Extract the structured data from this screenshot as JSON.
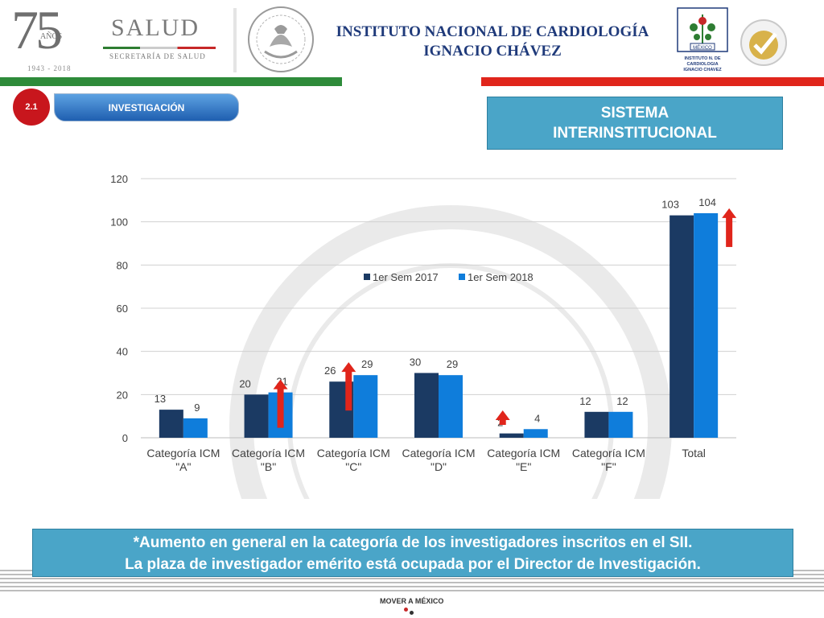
{
  "header": {
    "anniversary_number": "75",
    "anniversary_word": "AÑOS",
    "anniversary_years": "1943 - 2018",
    "salud_title": "SALUD",
    "salud_subtitle": "SECRETARÍA DE SALUD",
    "institute_line1": "INSTITUTO NACIONAL DE CARDIOLOGÍA",
    "institute_line2": "IGNACIO CHÁVEZ",
    "inc_logo_text": "MÉXICO",
    "inc_logo_caption_1": "INSTITUTO N. DE",
    "inc_logo_caption_2": "CARDIOLOGIA",
    "inc_logo_caption_3": "IGNACIO CHAVEZ",
    "colors": {
      "green": "#2e8b3a",
      "red": "#e0251b",
      "navy": "#1f3a7a"
    }
  },
  "section": {
    "number": "2.1",
    "name": "INVESTIGACIÓN",
    "system_line1": "SISTEMA",
    "system_line2": "INTERINSTITUCIONAL"
  },
  "chart_data": {
    "type": "bar",
    "categories": [
      [
        "Categoría ICM",
        "\"A\""
      ],
      [
        "Categoría ICM",
        "\"B\""
      ],
      [
        "Categoría ICM",
        "\"C\""
      ],
      [
        "Categoría ICM",
        "\"D\""
      ],
      [
        "Categoría ICM",
        "\"E\""
      ],
      [
        "Categoría ICM",
        "\"F\""
      ],
      [
        "Total"
      ]
    ],
    "series": [
      {
        "name": "1er Sem 2017",
        "values": [
          13,
          20,
          26,
          30,
          2,
          12,
          103
        ],
        "color": "#1b3a63"
      },
      {
        "name": "1er Sem 2018",
        "values": [
          9,
          21,
          29,
          29,
          4,
          12,
          104
        ],
        "color": "#0f7ddb"
      }
    ],
    "ylim": [
      0,
      120
    ],
    "yticks": [
      0,
      20,
      40,
      60,
      80,
      100,
      120
    ],
    "grid": true,
    "legend_position": "top-center",
    "increase_arrows": [
      1,
      2,
      4,
      6
    ],
    "arrow_color": "#e0251b"
  },
  "note": {
    "line1": "*Aumento en general en la categoría de los investigadores inscritos en el SII.",
    "line2": "La plaza de investigador emérito está ocupada por el Director de Investigación."
  },
  "footer": {
    "logo_text": "MOVER A MÉXICO"
  }
}
